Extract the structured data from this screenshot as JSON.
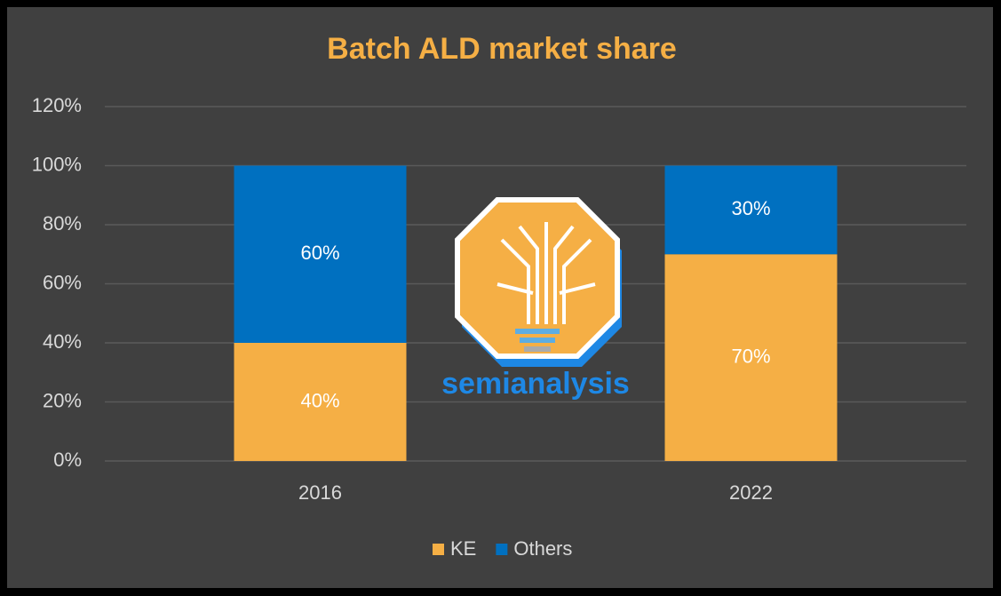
{
  "chart_data": {
    "type": "stacked-bar",
    "title": "Batch ALD market share",
    "categories": [
      "2016",
      "2022"
    ],
    "series": [
      {
        "name": "KE",
        "color": "#F5AF45",
        "values": [
          40,
          70
        ],
        "value_labels": [
          "40%",
          "70%"
        ]
      },
      {
        "name": "Others",
        "color": "#0070C0",
        "values": [
          60,
          30
        ],
        "value_labels": [
          "60%",
          "30%"
        ]
      }
    ],
    "ylim": [
      0,
      120
    ],
    "yticks": [
      {
        "value": 0,
        "label": "0%"
      },
      {
        "value": 20,
        "label": "20%"
      },
      {
        "value": 40,
        "label": "40%"
      },
      {
        "value": 60,
        "label": "60%"
      },
      {
        "value": 80,
        "label": "80%"
      },
      {
        "value": 100,
        "label": "100%"
      },
      {
        "value": 120,
        "label": "120%"
      }
    ],
    "grid": true,
    "legend": "bottom",
    "watermark": "semianalysis"
  }
}
